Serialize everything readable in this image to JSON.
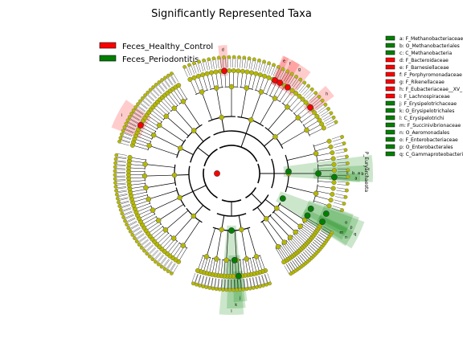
{
  "chart_data": {
    "type": "cladogram",
    "title": "Significantly Represented Taxa",
    "groups": [
      {
        "name": "Feces_Healthy_Control",
        "color": "#ff0000"
      },
      {
        "name": "Feces_Periodontitis",
        "color": "#008000"
      }
    ],
    "taxa": [
      {
        "letter": "a",
        "label": "a: F_Methanobacteriaceae",
        "group": "Feces_Periodontitis"
      },
      {
        "letter": "b",
        "label": "b: O_Methanobacteriales",
        "group": "Feces_Periodontitis"
      },
      {
        "letter": "c",
        "label": "c: C_Methanobacteria",
        "group": "Feces_Periodontitis"
      },
      {
        "letter": "d",
        "label": "d: F_Bacteroidaceae",
        "group": "Feces_Healthy_Control"
      },
      {
        "letter": "e",
        "label": "e: F_Barnesiellaceae",
        "group": "Feces_Healthy_Control"
      },
      {
        "letter": "f",
        "label": "f: F_Porphyromonadaceae",
        "group": "Feces_Healthy_Control"
      },
      {
        "letter": "g",
        "label": "g: F_Rikenellaceae",
        "group": "Feces_Healthy_Control"
      },
      {
        "letter": "h",
        "label": "h: F_Eubacteriaceae__XV_",
        "group": "Feces_Healthy_Control"
      },
      {
        "letter": "i",
        "label": "i: F_Lachnospiraceae",
        "group": "Feces_Healthy_Control"
      },
      {
        "letter": "j",
        "label": "j: F_Erysipelotrichaceae",
        "group": "Feces_Periodontitis"
      },
      {
        "letter": "k",
        "label": "k: O_Erysipelotrichales",
        "group": "Feces_Periodontitis"
      },
      {
        "letter": "l",
        "label": "l: C_Erysipelotrichi",
        "group": "Feces_Periodontitis"
      },
      {
        "letter": "m",
        "label": "m: F_Succinivibrionaceae",
        "group": "Feces_Periodontitis"
      },
      {
        "letter": "n",
        "label": "n: O_Aeromonadales",
        "group": "Feces_Periodontitis"
      },
      {
        "letter": "o",
        "label": "o: F_Enterobacteriaceae",
        "group": "Feces_Periodontitis"
      },
      {
        "letter": "p",
        "label": "p: O_Enterobacterales",
        "group": "Feces_Periodontitis"
      },
      {
        "letter": "q",
        "label": "q: C_Gammaproteobacteria",
        "group": "Feces_Periodontitis"
      }
    ],
    "side_label": "P_Euryarchaeota",
    "ring_labels": [
      "a",
      "b",
      "c"
    ]
  }
}
